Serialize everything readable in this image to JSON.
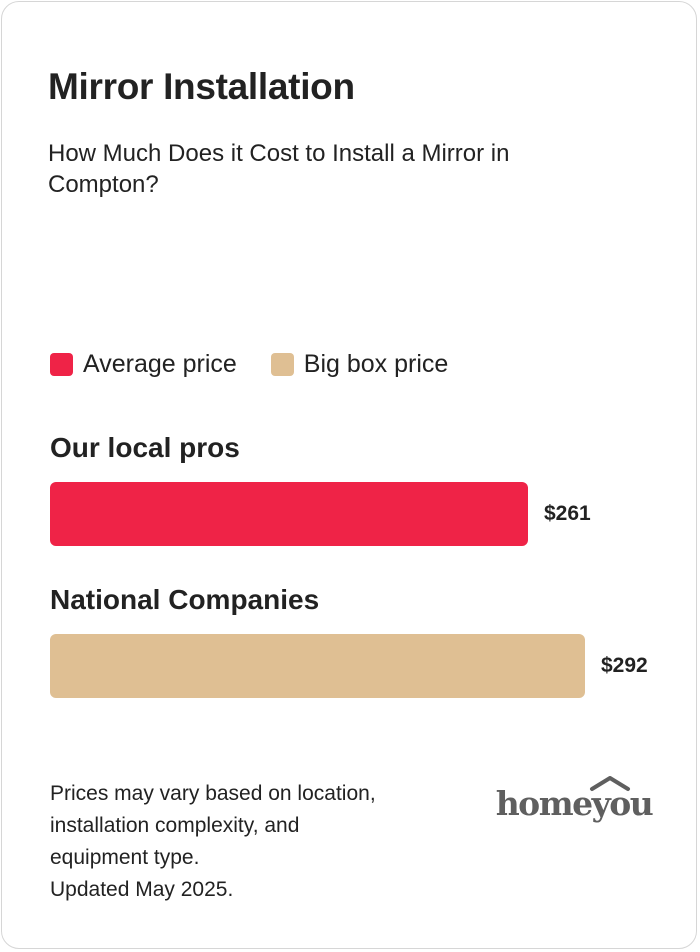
{
  "header": {
    "title": "Mirror Installation",
    "subtitle": "How Much Does it Cost to Install a Mirror in Compton?"
  },
  "legend": [
    {
      "label": "Average price",
      "color": "#ef2347"
    },
    {
      "label": "Big box price",
      "color": "#dfbf93"
    }
  ],
  "chart_data": {
    "type": "bar",
    "orientation": "horizontal",
    "categories": [
      "Our local pros",
      "National Companies"
    ],
    "values": [
      261,
      292
    ],
    "value_labels": [
      "$261",
      "$292"
    ],
    "colors": [
      "#ef2347",
      "#dfbf93"
    ],
    "series": [
      {
        "name": "Average price",
        "values": [
          261,
          null
        ]
      },
      {
        "name": "Big box price",
        "values": [
          null,
          292
        ]
      }
    ],
    "title": "Mirror Installation",
    "subtitle": "How Much Does it Cost to Install a Mirror in Compton?",
    "xlim": [
      0,
      310
    ],
    "grid": false,
    "legend_position": "top-left"
  },
  "footnote": {
    "lines": [
      "Prices may vary based on location,",
      "installation complexity, and",
      "equipment type.",
      "Updated May 2025."
    ]
  },
  "logo": {
    "text": "homeyou",
    "color": "#5f5f5f"
  }
}
